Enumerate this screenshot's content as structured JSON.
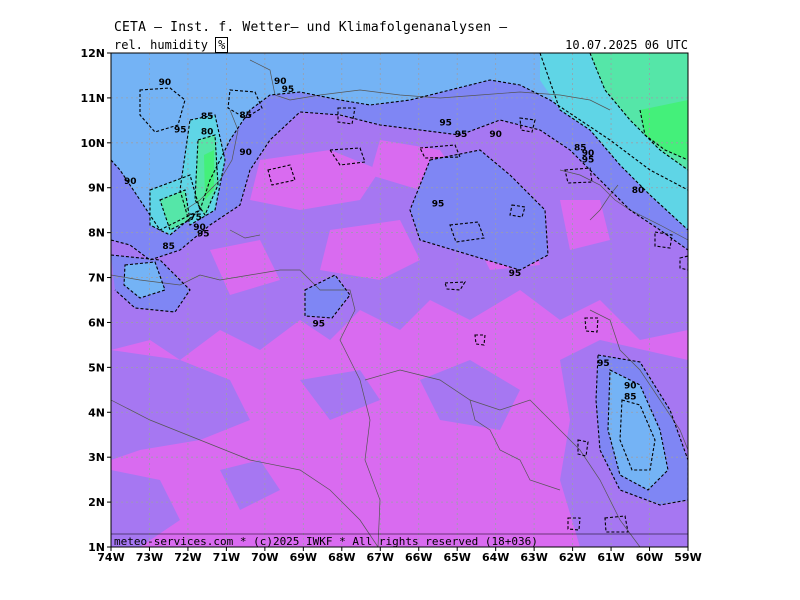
{
  "header": {
    "title": "CETA — Inst. f. Wetter— und Klimafolgenanalysen —",
    "parameter": "rel. humidity",
    "unit": "%",
    "valid_time": "10.07.2025 06 UTC"
  },
  "footer": {
    "credit": "meteo-services.com * (c)2025 IWKF * All rights reserved (18+036)"
  },
  "axes": {
    "lat_labels": [
      "12N",
      "11N",
      "10N",
      "9N",
      "8N",
      "7N",
      "6N",
      "5N",
      "4N",
      "3N",
      "2N",
      "1N"
    ],
    "lon_labels": [
      "74W",
      "73W",
      "72W",
      "71W",
      "70W",
      "69W",
      "68W",
      "67W",
      "66W",
      "65W",
      "64W",
      "63W",
      "62W",
      "61W",
      "60W",
      "59W"
    ]
  },
  "isolines": {
    "labels": [
      {
        "text": "90",
        "lon": -72.6,
        "lat": 11.35
      },
      {
        "text": "90",
        "lon": -69.6,
        "lat": 11.38
      },
      {
        "text": "95",
        "lon": -69.4,
        "lat": 11.2
      },
      {
        "text": "85",
        "lon": -71.5,
        "lat": 10.6
      },
      {
        "text": "85",
        "lon": -70.5,
        "lat": 10.62
      },
      {
        "text": "95",
        "lon": -72.2,
        "lat": 10.3
      },
      {
        "text": "80",
        "lon": -71.5,
        "lat": 10.25
      },
      {
        "text": "90",
        "lon": -70.5,
        "lat": 9.8
      },
      {
        "text": "90",
        "lon": -73.5,
        "lat": 9.15
      },
      {
        "text": "95",
        "lon": -65.3,
        "lat": 10.45
      },
      {
        "text": "95",
        "lon": -64.9,
        "lat": 10.2
      },
      {
        "text": "90",
        "lon": -64.0,
        "lat": 10.2
      },
      {
        "text": "85",
        "lon": -61.8,
        "lat": 9.9
      },
      {
        "text": "90",
        "lon": -61.6,
        "lat": 9.77
      },
      {
        "text": "95",
        "lon": -61.6,
        "lat": 9.63
      },
      {
        "text": "80",
        "lon": -60.3,
        "lat": 8.95
      },
      {
        "text": "95",
        "lon": -65.5,
        "lat": 8.65
      },
      {
        "text": "75",
        "lon": -71.8,
        "lat": 8.35
      },
      {
        "text": "90",
        "lon": -71.7,
        "lat": 8.12
      },
      {
        "text": "95",
        "lon": -71.6,
        "lat": 7.98
      },
      {
        "text": "85",
        "lon": -72.5,
        "lat": 7.7
      },
      {
        "text": "95",
        "lon": -63.5,
        "lat": 7.1
      },
      {
        "text": "95",
        "lon": -68.6,
        "lat": 5.98
      },
      {
        "text": "95",
        "lon": -61.2,
        "lat": 5.1
      },
      {
        "text": "90",
        "lon": -60.5,
        "lat": 4.6
      },
      {
        "text": "85",
        "lon": -60.5,
        "lat": 4.35
      }
    ]
  },
  "colors": {
    "very_humid": "#d96bf0",
    "humid": "#a677f2",
    "medium": "#7f86f4",
    "dry_blue": "#74b3f5",
    "cyan": "#5fd5e6",
    "green": "#55e6a8",
    "bright_green": "#44f07a"
  }
}
